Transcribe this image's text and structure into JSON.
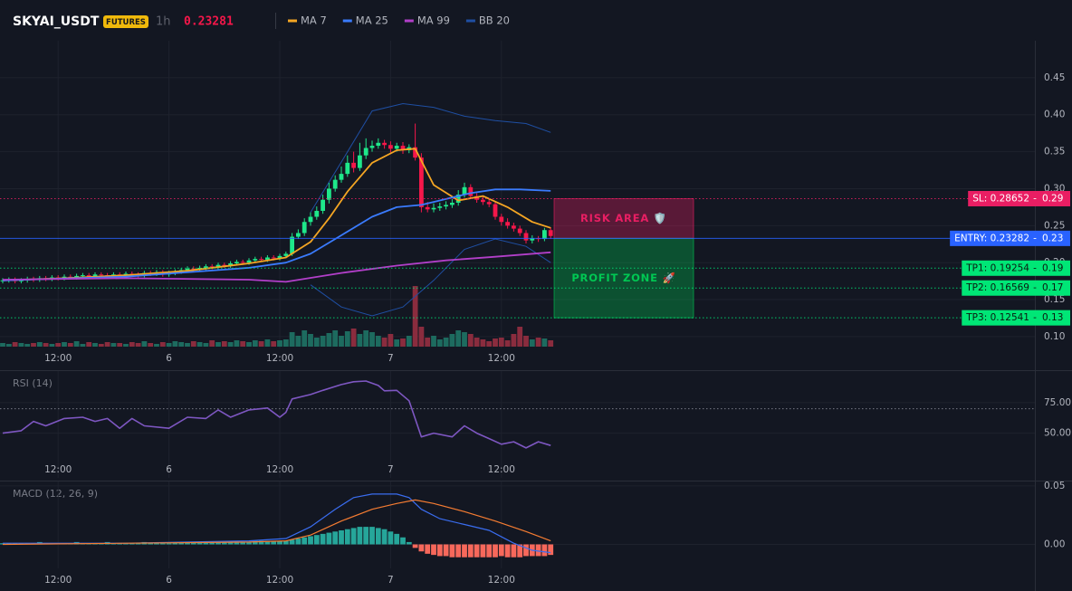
{
  "chart_data": [
    {
      "type": "candlestick",
      "title": "SKYAI_USDT",
      "badge": "FUTURES",
      "interval": "1h",
      "last_price": 0.23281,
      "last_price_color": "#f6174a",
      "categories": [
        null,
        null,
        null,
        null,
        null,
        null,
        null,
        null,
        null,
        "12:00",
        null,
        null,
        null,
        null,
        null,
        null,
        null,
        null,
        null,
        null,
        null,
        null,
        null,
        null,
        null,
        null,
        null,
        "6",
        null,
        null,
        null,
        null,
        null,
        null,
        null,
        null,
        null,
        null,
        null,
        null,
        null,
        null,
        null,
        null,
        null,
        "12:00",
        null,
        null,
        null,
        null,
        null,
        null,
        null,
        null,
        null,
        null,
        null,
        null,
        null,
        null,
        null,
        null,
        null,
        "7",
        null,
        null,
        null,
        null,
        null,
        null,
        null,
        null,
        null,
        null,
        null,
        null,
        null,
        null,
        null,
        null,
        null,
        "12:00",
        null,
        null,
        null,
        null,
        null,
        null,
        null,
        null
      ],
      "open": [
        0.175,
        0.176,
        0.177,
        0.175,
        0.176,
        0.178,
        0.177,
        0.179,
        0.178,
        0.18,
        0.179,
        0.181,
        0.18,
        0.182,
        0.183,
        0.181,
        0.184,
        0.183,
        0.182,
        0.184,
        0.183,
        0.185,
        0.184,
        0.183,
        0.186,
        0.185,
        0.187,
        0.184,
        0.186,
        0.188,
        0.19,
        0.192,
        0.191,
        0.193,
        0.195,
        0.194,
        0.197,
        0.196,
        0.199,
        0.201,
        0.2,
        0.203,
        0.205,
        0.204,
        0.207,
        0.206,
        0.209,
        0.212,
        0.235,
        0.24,
        0.255,
        0.262,
        0.27,
        0.285,
        0.3,
        0.312,
        0.32,
        0.335,
        0.328,
        0.345,
        0.355,
        0.358,
        0.362,
        0.359,
        0.354,
        0.358,
        0.352,
        0.356,
        0.342,
        0.275,
        0.272,
        0.274,
        0.276,
        0.278,
        0.281,
        0.292,
        0.302,
        0.29,
        0.285,
        0.282,
        0.279,
        0.262,
        0.255,
        0.25,
        0.246,
        0.24,
        0.23,
        0.233,
        0.232,
        0.244
      ],
      "high": [
        0.179,
        0.18,
        0.18,
        0.179,
        0.181,
        0.181,
        0.182,
        0.182,
        0.183,
        0.183,
        0.184,
        0.184,
        0.185,
        0.186,
        0.186,
        0.187,
        0.187,
        0.186,
        0.187,
        0.187,
        0.188,
        0.188,
        0.187,
        0.189,
        0.189,
        0.19,
        0.19,
        0.189,
        0.191,
        0.193,
        0.195,
        0.195,
        0.196,
        0.198,
        0.198,
        0.2,
        0.2,
        0.202,
        0.204,
        0.204,
        0.206,
        0.208,
        0.208,
        0.21,
        0.21,
        0.212,
        0.215,
        0.24,
        0.245,
        0.26,
        0.268,
        0.276,
        0.292,
        0.308,
        0.318,
        0.33,
        0.345,
        0.35,
        0.362,
        0.368,
        0.365,
        0.368,
        0.366,
        0.364,
        0.362,
        0.363,
        0.36,
        0.388,
        0.348,
        0.282,
        0.28,
        0.281,
        0.283,
        0.286,
        0.298,
        0.308,
        0.306,
        0.294,
        0.289,
        0.286,
        0.283,
        0.266,
        0.26,
        0.254,
        0.25,
        0.244,
        0.237,
        0.236,
        0.247,
        0.248
      ],
      "low": [
        0.172,
        0.173,
        0.172,
        0.172,
        0.173,
        0.174,
        0.174,
        0.175,
        0.175,
        0.176,
        0.176,
        0.177,
        0.177,
        0.179,
        0.178,
        0.178,
        0.18,
        0.179,
        0.179,
        0.18,
        0.18,
        0.181,
        0.18,
        0.18,
        0.182,
        0.182,
        0.181,
        0.181,
        0.183,
        0.185,
        0.187,
        0.188,
        0.188,
        0.19,
        0.191,
        0.191,
        0.193,
        0.193,
        0.196,
        0.197,
        0.197,
        0.2,
        0.201,
        0.201,
        0.203,
        0.203,
        0.206,
        0.209,
        0.232,
        0.236,
        0.25,
        0.258,
        0.266,
        0.28,
        0.296,
        0.308,
        0.316,
        0.322,
        0.324,
        0.34,
        0.35,
        0.354,
        0.354,
        0.349,
        0.35,
        0.347,
        0.348,
        0.338,
        0.268,
        0.268,
        0.268,
        0.27,
        0.272,
        0.274,
        0.277,
        0.288,
        0.286,
        0.281,
        0.278,
        0.275,
        0.258,
        0.25,
        0.246,
        0.242,
        0.236,
        0.226,
        0.226,
        0.228,
        0.229,
        0.232
      ],
      "close": [
        0.176,
        0.177,
        0.175,
        0.176,
        0.178,
        0.177,
        0.179,
        0.178,
        0.18,
        0.179,
        0.181,
        0.18,
        0.182,
        0.183,
        0.181,
        0.184,
        0.183,
        0.182,
        0.184,
        0.183,
        0.185,
        0.184,
        0.183,
        0.186,
        0.185,
        0.187,
        0.184,
        0.186,
        0.188,
        0.19,
        0.192,
        0.191,
        0.193,
        0.195,
        0.194,
        0.197,
        0.196,
        0.199,
        0.201,
        0.2,
        0.203,
        0.205,
        0.204,
        0.207,
        0.206,
        0.209,
        0.212,
        0.235,
        0.24,
        0.255,
        0.262,
        0.27,
        0.285,
        0.3,
        0.312,
        0.32,
        0.335,
        0.328,
        0.345,
        0.355,
        0.358,
        0.362,
        0.359,
        0.354,
        0.358,
        0.352,
        0.356,
        0.342,
        0.275,
        0.272,
        0.274,
        0.276,
        0.278,
        0.281,
        0.292,
        0.302,
        0.29,
        0.285,
        0.282,
        0.279,
        0.262,
        0.255,
        0.25,
        0.246,
        0.24,
        0.23,
        0.233,
        0.232,
        0.244,
        0.236
      ],
      "up_color": "#1ee88a",
      "down_color": "#f6174a",
      "volume": {
        "up_color": "#1d6b5f",
        "down_color": "#8a2c3e",
        "values": [
          4,
          3,
          5,
          4,
          3,
          4,
          5,
          4,
          3,
          4,
          5,
          4,
          6,
          3,
          5,
          4,
          3,
          5,
          4,
          4,
          3,
          5,
          4,
          6,
          4,
          3,
          5,
          4,
          6,
          5,
          4,
          6,
          5,
          4,
          7,
          5,
          6,
          5,
          7,
          6,
          5,
          7,
          6,
          8,
          6,
          7,
          8,
          16,
          12,
          18,
          14,
          10,
          12,
          15,
          18,
          12,
          17,
          20,
          14,
          18,
          16,
          12,
          10,
          14,
          8,
          9,
          12,
          67,
          22,
          10,
          12,
          8,
          10,
          14,
          18,
          16,
          14,
          10,
          8,
          6,
          9,
          10,
          7,
          14,
          22,
          12,
          8,
          10,
          9,
          7
        ]
      },
      "series": [
        {
          "name": "MA 7",
          "color": "#f5a623",
          "x": [
            0,
            10,
            20,
            30,
            40,
            46,
            50,
            53,
            56,
            60,
            64,
            67,
            70,
            74,
            78,
            82,
            86,
            89
          ],
          "values": [
            0.176,
            0.179,
            0.183,
            0.189,
            0.199,
            0.207,
            0.228,
            0.26,
            0.296,
            0.335,
            0.352,
            0.354,
            0.305,
            0.284,
            0.29,
            0.275,
            0.255,
            0.247
          ]
        },
        {
          "name": "MA 25",
          "color": "#3a7bfd",
          "x": [
            0,
            20,
            40,
            46,
            50,
            55,
            60,
            64,
            68,
            72,
            76,
            80,
            84,
            89
          ],
          "values": [
            0.176,
            0.181,
            0.193,
            0.2,
            0.212,
            0.237,
            0.262,
            0.275,
            0.278,
            0.286,
            0.294,
            0.299,
            0.299,
            0.297
          ]
        },
        {
          "name": "MA 99",
          "color": "#b23fc9",
          "x": [
            0,
            20,
            40,
            46,
            55,
            64,
            72,
            80,
            89
          ],
          "values": [
            0.177,
            0.179,
            0.177,
            0.174,
            0.186,
            0.196,
            0.203,
            0.208,
            0.214
          ]
        }
      ],
      "bands": {
        "name": "BB 20",
        "color": "#1f4fa3",
        "x": [
          50,
          55,
          60,
          65,
          70,
          75,
          80,
          85,
          89
        ],
        "upper": [
          0.268,
          0.336,
          0.405,
          0.415,
          0.41,
          0.398,
          0.392,
          0.388,
          0.376
        ],
        "lower": [
          0.17,
          0.14,
          0.128,
          0.14,
          0.176,
          0.218,
          0.232,
          0.222,
          0.2
        ]
      },
      "level_separator": "-",
      "levels": [
        {
          "label": "SL: 0.28652",
          "value": 0.28652,
          "axis_label": "0.29",
          "color": "#e91e63",
          "text_color": "#ffffff",
          "style": "dotted"
        },
        {
          "label": "ENTRY: 0.23282",
          "value": 0.23282,
          "axis_label": "0.23",
          "color": "#2962ff",
          "text_color": "#ffffff",
          "style": "solid"
        },
        {
          "label": "TP1: 0.19254",
          "value": 0.19254,
          "axis_label": "0.19",
          "color": "#00e676",
          "text_color": "#0b1a10",
          "style": "dotted"
        },
        {
          "label": "TP2: 0.16569",
          "value": 0.16569,
          "axis_label": "0.17",
          "color": "#00e676",
          "text_color": "#0b1a10",
          "style": "dotted"
        },
        {
          "label": "TP3: 0.12541",
          "value": 0.12541,
          "axis_label": "0.13",
          "color": "#00e676",
          "text_color": "#0b1a10",
          "style": "dotted"
        }
      ],
      "zones": [
        {
          "label": "RISK AREA 🛡️",
          "from": 0.23282,
          "to": 0.28652,
          "color": "#e91e63"
        },
        {
          "label": "PROFIT ZONE 🚀",
          "from": 0.12541,
          "to": 0.23282,
          "color": "#00c853"
        }
      ],
      "ylim": [
        0.084,
        0.5
      ],
      "yticks": [
        0.45,
        {
          "value": 0.4,
          "label": "0.40"
        },
        0.35,
        {
          "value": 0.3,
          "label": "0.30"
        },
        0.25,
        {
          "value": 0.2,
          "label": "0.20"
        },
        0.15,
        {
          "value": 0.1,
          "label": "0.10"
        }
      ]
    },
    {
      "type": "line",
      "title": "RSI (14)",
      "color": "#7e57c2",
      "x": [
        0,
        3,
        5,
        7,
        10,
        13,
        15,
        17,
        19,
        21,
        23,
        27,
        30,
        33,
        35,
        37,
        40,
        43,
        45,
        46,
        47,
        50,
        52,
        55,
        57,
        59,
        61,
        62,
        64,
        66,
        68,
        70,
        73,
        75,
        77,
        79,
        81,
        83,
        85,
        87,
        89
      ],
      "values": [
        50,
        52,
        59.6,
        56,
        62,
        63,
        59.6,
        62,
        54,
        62,
        56,
        54,
        63,
        62,
        69,
        63,
        69,
        70.6,
        63,
        67,
        78,
        81.6,
        85,
        89.7,
        92,
        92.6,
        89,
        84.6,
        85,
        76.5,
        47,
        50,
        47,
        56,
        50,
        45.6,
        41,
        43,
        38,
        43,
        40
      ],
      "levels": [
        70
      ],
      "ylim": [
        13.5,
        100
      ],
      "yticks": [
        {
          "value": 75,
          "label": "75.00"
        },
        {
          "value": 50,
          "label": "50.00"
        }
      ]
    },
    {
      "type": "macd",
      "title": "MACD (12, 26, 9)",
      "histogram": {
        "up_color": "#26a69a",
        "down_color": "#f7685b",
        "values": [
          0.001,
          0.001,
          0.001,
          0.001,
          0.001,
          0.001,
          0.002,
          0.001,
          0.001,
          0.001,
          0.001,
          0.001,
          0.002,
          0.001,
          0.001,
          0.001,
          0.001,
          0.002,
          0.001,
          0.001,
          0.001,
          0.001,
          0.001,
          0.002,
          0.001,
          0.001,
          0.001,
          0.001,
          0.002,
          0.002,
          0.002,
          0.002,
          0.002,
          0.002,
          0.002,
          0.002,
          0.002,
          0.002,
          0.002,
          0.002,
          0.002,
          0.003,
          0.003,
          0.003,
          0.003,
          0.003,
          0.003,
          0.004,
          0.005,
          0.006,
          0.007,
          0.008,
          0.009,
          0.01,
          0.011,
          0.012,
          0.013,
          0.014,
          0.015,
          0.015,
          0.015,
          0.014,
          0.013,
          0.011,
          0.009,
          0.006,
          0.002,
          -0.003,
          -0.006,
          -0.008,
          -0.009,
          -0.01,
          -0.01,
          -0.011,
          -0.011,
          -0.011,
          -0.011,
          -0.011,
          -0.011,
          -0.011,
          -0.011,
          -0.01,
          -0.011,
          -0.011,
          -0.011,
          -0.01,
          -0.01,
          -0.01,
          -0.01,
          -0.009
        ]
      },
      "series": [
        {
          "color": "#3a6df0",
          "x": [
            0,
            20,
            40,
            46,
            50,
            54,
            57,
            60,
            64,
            66,
            68,
            71,
            75,
            79,
            83,
            86,
            89
          ],
          "values": [
            0.001,
            0.001,
            0.003,
            0.005,
            0.015,
            0.03,
            0.04,
            0.043,
            0.043,
            0.04,
            0.03,
            0.022,
            0.017,
            0.012,
            0.001,
            -0.005,
            -0.007
          ]
        },
        {
          "color": "#f57c32",
          "x": [
            0,
            40,
            46,
            50,
            55,
            60,
            64,
            67,
            70,
            75,
            80,
            85,
            89
          ],
          "values": [
            0,
            0.002,
            0.003,
            0.008,
            0.02,
            0.03,
            0.035,
            0.038,
            0.035,
            0.028,
            0.02,
            0.011,
            0.003
          ]
        }
      ],
      "ylim": [
        -0.0205,
        0.053
      ],
      "yticks": [
        0.05,
        {
          "value": 0,
          "label": "0.00"
        }
      ]
    }
  ]
}
